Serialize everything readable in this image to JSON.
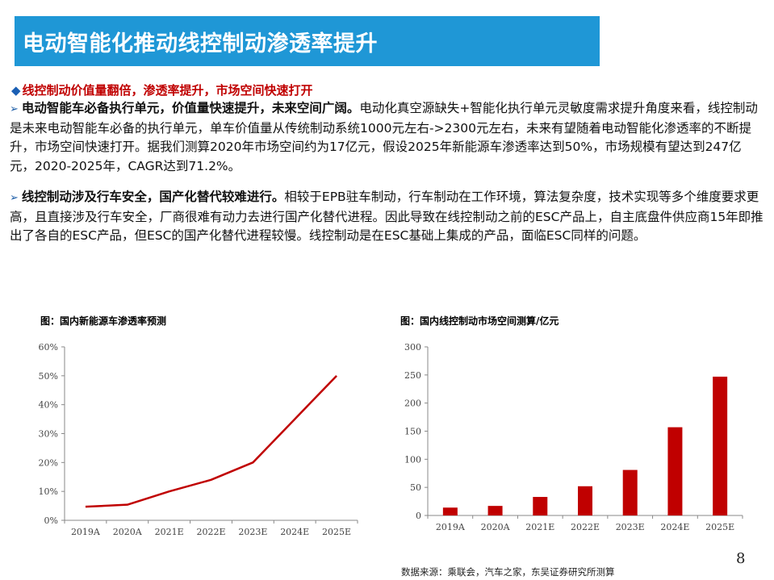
{
  "slide": {
    "title": "电动智能化推动线控制动渗透率提升",
    "subtitle": "线控制动价值量翻倍，渗透率提升，市场空间快速打开",
    "bullets": [
      {
        "lead": "电动智能车必备执行单元，价值量快速提升，未来空间广阔。",
        "body": "电动化真空源缺失+智能化执行单元灵敏度需求提升角度来看，线控制动是未来电动智能车必备的执行单元，单车价值量从传统制动系统1000元左右->2300元左右，未来有望随着电动智能化渗透率的不断提升，市场空间快速打开。据我们测算2020年市场空间约为17亿元，假设2025年新能源车渗透率达到50%，市场规模有望达到247亿元，2020-2025年，CAGR达到71.2%。"
      },
      {
        "lead": "线控制动涉及行车安全，国产化替代较难进行。",
        "body": "相较于EPB驻车制动，行车制动在工作环境，算法复杂度，技术实现等多个维度要求更高，且直接涉及行车安全，厂商很难有动力去进行国产化替代进程。因此导致在线控制动之前的ESC产品上，自主底盘件供应商15年即推出了各自的ESC产品，但ESC的国产化替代进程较慢。线控制动是在ESC基础上集成的产品，面临ESC同样的问题。"
      }
    ],
    "source": "数据来源：乘联会，汽车之家，东吴证券研究所测算",
    "page_number": "8"
  },
  "colors": {
    "title_bar": "#1f97d6",
    "subtitle": "#c00000",
    "series": "#c00000",
    "arrow": "#1f5fa8"
  },
  "chart_data": [
    {
      "type": "line",
      "title": "图：国内新能源车渗透率预测",
      "categories": [
        "2019A",
        "2020A",
        "2021E",
        "2022E",
        "2023E",
        "2024E",
        "2025E"
      ],
      "values": [
        0.047,
        0.054,
        0.1,
        0.14,
        0.2,
        0.35,
        0.5
      ],
      "yticks": [
        "0%",
        "10%",
        "20%",
        "30%",
        "40%",
        "50%",
        "60%"
      ],
      "ylim": [
        0,
        0.6
      ],
      "grid": false,
      "legend": "none"
    },
    {
      "type": "bar",
      "title": "图：国内线控制动市场空间测算/亿元",
      "categories": [
        "2019A",
        "2020A",
        "2021E",
        "2022E",
        "2023E",
        "2024E",
        "2025E"
      ],
      "values": [
        14,
        17,
        33,
        52,
        81,
        157,
        247
      ],
      "yticks": [
        "0",
        "50",
        "100",
        "150",
        "200",
        "250",
        "300"
      ],
      "ylim": [
        0,
        300
      ],
      "grid": false,
      "legend": "none"
    }
  ]
}
